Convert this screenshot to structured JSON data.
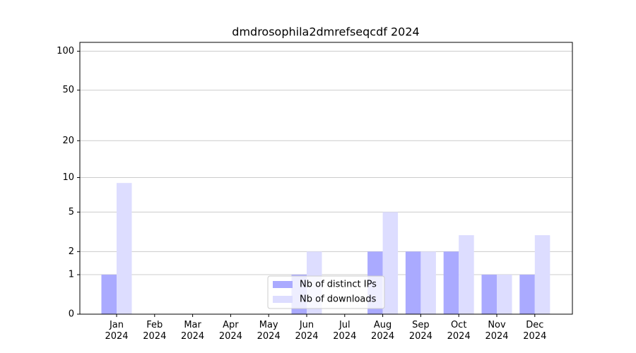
{
  "chart_data": {
    "type": "bar",
    "title": "dmdrosophila2dmrefseqcdf 2024",
    "categories": [
      "Jan\n2024",
      "Feb\n2024",
      "Mar\n2024",
      "Apr\n2024",
      "May\n2024",
      "Jun\n2024",
      "Jul\n2024",
      "Aug\n2024",
      "Sep\n2024",
      "Oct\n2024",
      "Nov\n2024",
      "Dec\n2024"
    ],
    "series": [
      {
        "name": "Nb of distinct IPs",
        "color": "#aaaaff",
        "values": [
          1,
          0,
          0,
          0,
          0,
          1,
          0,
          2,
          2,
          2,
          1,
          1
        ]
      },
      {
        "name": "Nb of downloads",
        "color": "#ddddff",
        "values": [
          9,
          0,
          0,
          0,
          0,
          2,
          0,
          5,
          2,
          3,
          1,
          3
        ]
      }
    ],
    "yscale": "log1p",
    "ylim": [
      0,
      117
    ],
    "yticks": [
      0,
      1,
      2,
      5,
      10,
      20,
      50,
      100
    ],
    "grid": true,
    "legend": "lower center"
  }
}
